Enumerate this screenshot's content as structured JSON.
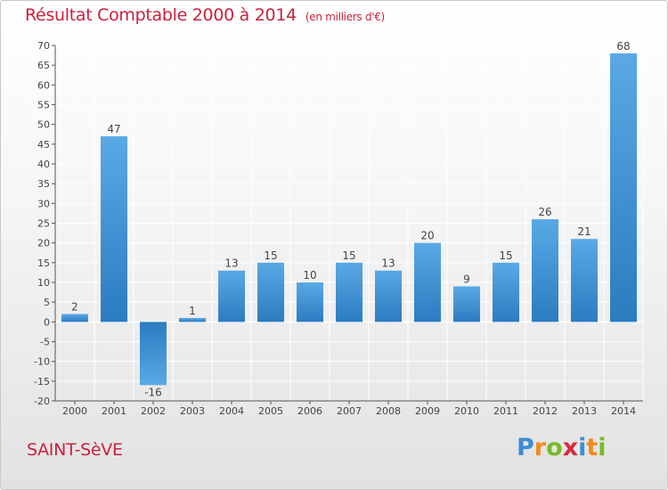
{
  "title": {
    "main": "Résultat Comptable 2000 à 2014",
    "unit": "(en milliers d'€)"
  },
  "commune": "SAINT-SèVE",
  "logo": {
    "text": "Proxiti",
    "letters": [
      {
        "ch": "P",
        "color": "#3c8dd6"
      },
      {
        "ch": "r",
        "color": "#f28a1c"
      },
      {
        "ch": "o",
        "color": "#79b928"
      },
      {
        "ch": "x",
        "color": "#d62a3a"
      },
      {
        "ch": "i",
        "color": "#3c8dd6"
      },
      {
        "ch": "t",
        "color": "#f28a1c"
      },
      {
        "ch": "i",
        "color": "#79b928"
      }
    ]
  },
  "colors": {
    "accent": "#c9213e",
    "bar_light": "#5aa9e6",
    "bar_dark": "#2b7cc0",
    "grid": "#ffffff"
  },
  "chart_data": {
    "type": "bar",
    "categories": [
      "2000",
      "2001",
      "2002",
      "2003",
      "2004",
      "2005",
      "2006",
      "2007",
      "2008",
      "2009",
      "2010",
      "2011",
      "2012",
      "2013",
      "2014"
    ],
    "values": [
      2,
      47,
      -16,
      1,
      13,
      15,
      10,
      15,
      13,
      20,
      9,
      15,
      26,
      21,
      68
    ],
    "ylim": [
      -20,
      70
    ],
    "yticks": [
      -20,
      -15,
      -10,
      -5,
      0,
      5,
      10,
      15,
      20,
      25,
      30,
      35,
      40,
      45,
      50,
      55,
      60,
      65,
      70
    ],
    "xlabel": "",
    "ylabel": "",
    "grid": true
  }
}
